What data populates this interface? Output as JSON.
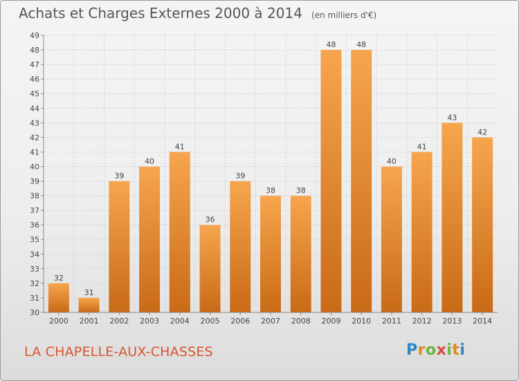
{
  "title": "Achats et Charges Externes 2000 à 2014",
  "subtitle": "(en milliers d'€)",
  "commune": "LA CHAPELLE-AUX-CHASSES",
  "logo": {
    "letters": [
      "P",
      "r",
      "o",
      "x",
      "i",
      "t",
      "i"
    ]
  },
  "colors": {
    "bar_light": "#f6a54e",
    "bar_dark": "#c96a16",
    "title": "#555555",
    "commune": "#d9552f"
  },
  "chart_data": {
    "type": "bar",
    "title": "Achats et Charges Externes 2000 à 2014",
    "subtitle": "(en milliers d'€)",
    "categories": [
      "2000",
      "2001",
      "2002",
      "2003",
      "2004",
      "2005",
      "2006",
      "2007",
      "2008",
      "2009",
      "2010",
      "2011",
      "2012",
      "2013",
      "2014"
    ],
    "values": [
      32,
      31,
      39,
      40,
      41,
      36,
      39,
      38,
      38,
      48,
      48,
      40,
      41,
      43,
      42
    ],
    "xlabel": "",
    "ylabel": "",
    "ylim": [
      30,
      49
    ],
    "yticks": [
      30,
      31,
      32,
      33,
      34,
      35,
      36,
      37,
      38,
      39,
      40,
      41,
      42,
      43,
      44,
      45,
      46,
      47,
      48,
      49
    ],
    "grid": true
  }
}
